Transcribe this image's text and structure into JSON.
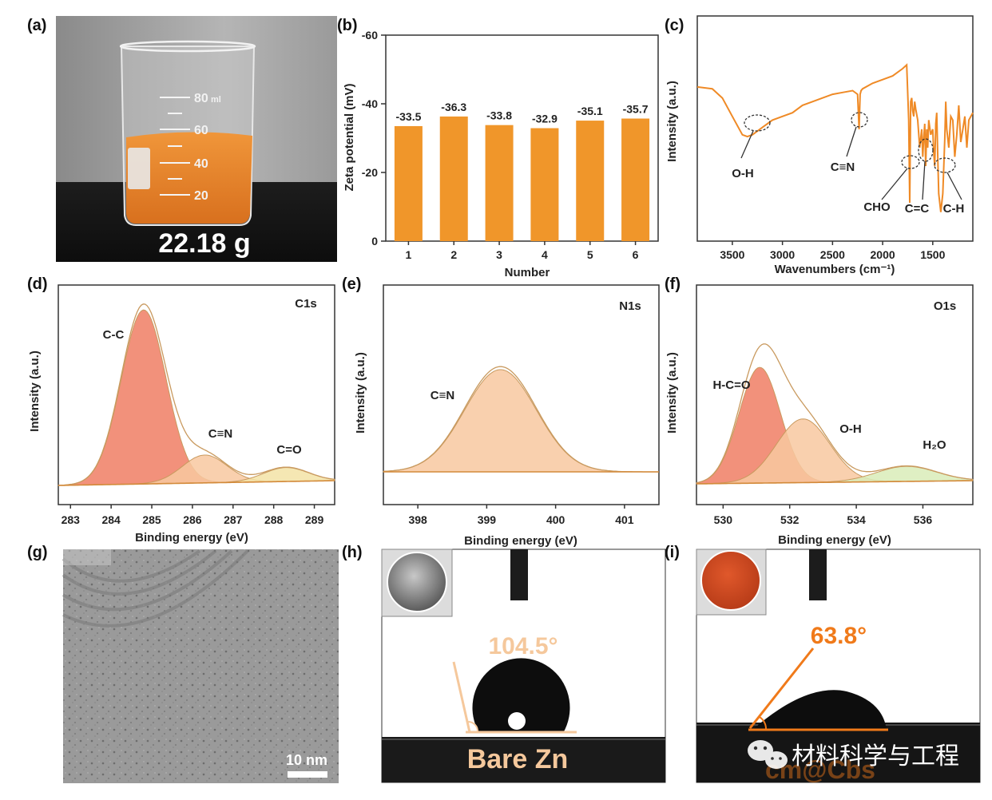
{
  "watermark": {
    "text": "材料科学与工程",
    "partial": "cm@Cbs"
  },
  "panels": {
    "a": {
      "letter": "(a)",
      "mass": "22.18 g",
      "beaker_marks": [
        "80",
        "60",
        "40",
        "20"
      ],
      "beaker_unit": "ml"
    },
    "g": {
      "letter": "(g)",
      "scale": "10 nm"
    },
    "h": {
      "letter": "(h)",
      "angle": "104.5°",
      "caption": "Bare Zn"
    },
    "i": {
      "letter": "(i)",
      "angle": "63.8°"
    }
  },
  "colors": {
    "orange": "#f0962a",
    "ftir": "#ef8a26",
    "c1": "#f07e64",
    "c2": "#f8c8a0",
    "c3": "#f3e3a6",
    "envelope": "#c99a5f",
    "o3": "#d9ecb8"
  },
  "chart_data": [
    {
      "id": "b",
      "letter": "(b)",
      "type": "bar",
      "categories": [
        "1",
        "2",
        "3",
        "4",
        "5",
        "6"
      ],
      "values": [
        -33.5,
        -36.3,
        -33.8,
        -32.9,
        -35.1,
        -35.7
      ],
      "value_labels": [
        "-33.5",
        "-36.3",
        "-33.8",
        "-32.9",
        "-35.1",
        "-35.7"
      ],
      "xlabel": "Number",
      "ylabel": "Zeta potential (mV)",
      "ylim": [
        0,
        -60
      ],
      "yticks": [
        "0",
        "-20",
        "-40",
        "-60"
      ]
    },
    {
      "id": "c",
      "letter": "(c)",
      "type": "line",
      "xlabel": "Wavenumbers (cm⁻¹)",
      "ylabel": "Intensity (a.u.)",
      "xlim": [
        3850,
        1100
      ],
      "xticks": [
        "3500",
        "3000",
        "2500",
        "2000",
        "1500"
      ],
      "annotations": [
        "O-H",
        "C≡N",
        "CHO",
        "C=C",
        "C-H"
      ],
      "series": [
        {
          "name": "FTIR",
          "x": [
            3850,
            3700,
            3600,
            3500,
            3450,
            3400,
            3350,
            3300,
            3250,
            3200,
            3100,
            3000,
            2900,
            2800,
            2700,
            2600,
            2500,
            2400,
            2300,
            2250,
            2235,
            2225,
            2215,
            2200,
            2100,
            2000,
            1900,
            1800,
            1760,
            1740,
            1730,
            1720,
            1710,
            1700,
            1690,
            1680,
            1670,
            1650,
            1630,
            1610,
            1600,
            1590,
            1580,
            1570,
            1560,
            1550,
            1540,
            1520,
            1500,
            1490,
            1480,
            1470,
            1460,
            1450,
            1440,
            1420,
            1400,
            1380,
            1370,
            1360,
            1340,
            1320,
            1300,
            1280,
            1260,
            1240,
            1220,
            1200,
            1180,
            1160,
            1140,
            1120,
            1100
          ],
          "y": [
            0.78,
            0.77,
            0.72,
            0.62,
            0.57,
            0.52,
            0.51,
            0.52,
            0.54,
            0.56,
            0.6,
            0.62,
            0.64,
            0.68,
            0.7,
            0.72,
            0.74,
            0.75,
            0.76,
            0.74,
            0.55,
            0.74,
            0.76,
            0.77,
            0.8,
            0.82,
            0.84,
            0.88,
            0.9,
            0.6,
            0.15,
            0.7,
            0.72,
            0.65,
            0.62,
            0.7,
            0.66,
            0.6,
            0.45,
            0.55,
            0.4,
            0.5,
            0.58,
            0.35,
            0.55,
            0.45,
            0.6,
            0.52,
            0.55,
            0.42,
            0.35,
            0.58,
            0.64,
            0.4,
            0.2,
            0.1,
            0.2,
            0.5,
            0.7,
            0.55,
            0.45,
            0.62,
            0.6,
            0.4,
            0.52,
            0.68,
            0.48,
            0.55,
            0.62,
            0.45,
            0.6,
            0.62,
            0.64
          ]
        }
      ]
    },
    {
      "id": "d",
      "letter": "(d)",
      "type": "area",
      "title": "C1s",
      "xlabel": "Binding energy (eV)",
      "ylabel": "Intensity (a.u.)",
      "xlim": [
        282.7,
        289.5
      ],
      "xticks": [
        "283",
        "284",
        "285",
        "286",
        "287",
        "288",
        "289"
      ],
      "peaks": [
        {
          "name": "C-C",
          "center": 284.8,
          "height": 1.0,
          "width": 0.55
        },
        {
          "name": "C≡N",
          "center": 286.3,
          "height": 0.16,
          "width": 0.55
        },
        {
          "name": "C=O",
          "center": 288.3,
          "height": 0.08,
          "width": 0.55
        }
      ]
    },
    {
      "id": "e",
      "letter": "(e)",
      "type": "area",
      "title": "N1s",
      "xlabel": "Binding energy (eV)",
      "ylabel": "Intensity (a.u.)",
      "xlim": [
        397.5,
        401.5
      ],
      "xticks": [
        "398",
        "399",
        "400",
        "401"
      ],
      "peaks": [
        {
          "name": "C≡N",
          "center": 399.2,
          "height": 1.0,
          "width": 0.52
        }
      ]
    },
    {
      "id": "f",
      "letter": "(f)",
      "type": "area",
      "title": "O1s",
      "xlabel": "Binding energy (eV)",
      "ylabel": "Intensity (a.u.)",
      "xlim": [
        529.2,
        537.5
      ],
      "xticks": [
        "530",
        "532",
        "534",
        "536"
      ],
      "peaks": [
        {
          "name": "H-C=O",
          "center": 531.1,
          "height": 1.0,
          "width": 0.62
        },
        {
          "name": "O-H",
          "center": 532.4,
          "height": 0.55,
          "width": 0.8
        },
        {
          "name": "H₂O",
          "center": 535.5,
          "height": 0.13,
          "width": 0.9
        }
      ]
    }
  ]
}
